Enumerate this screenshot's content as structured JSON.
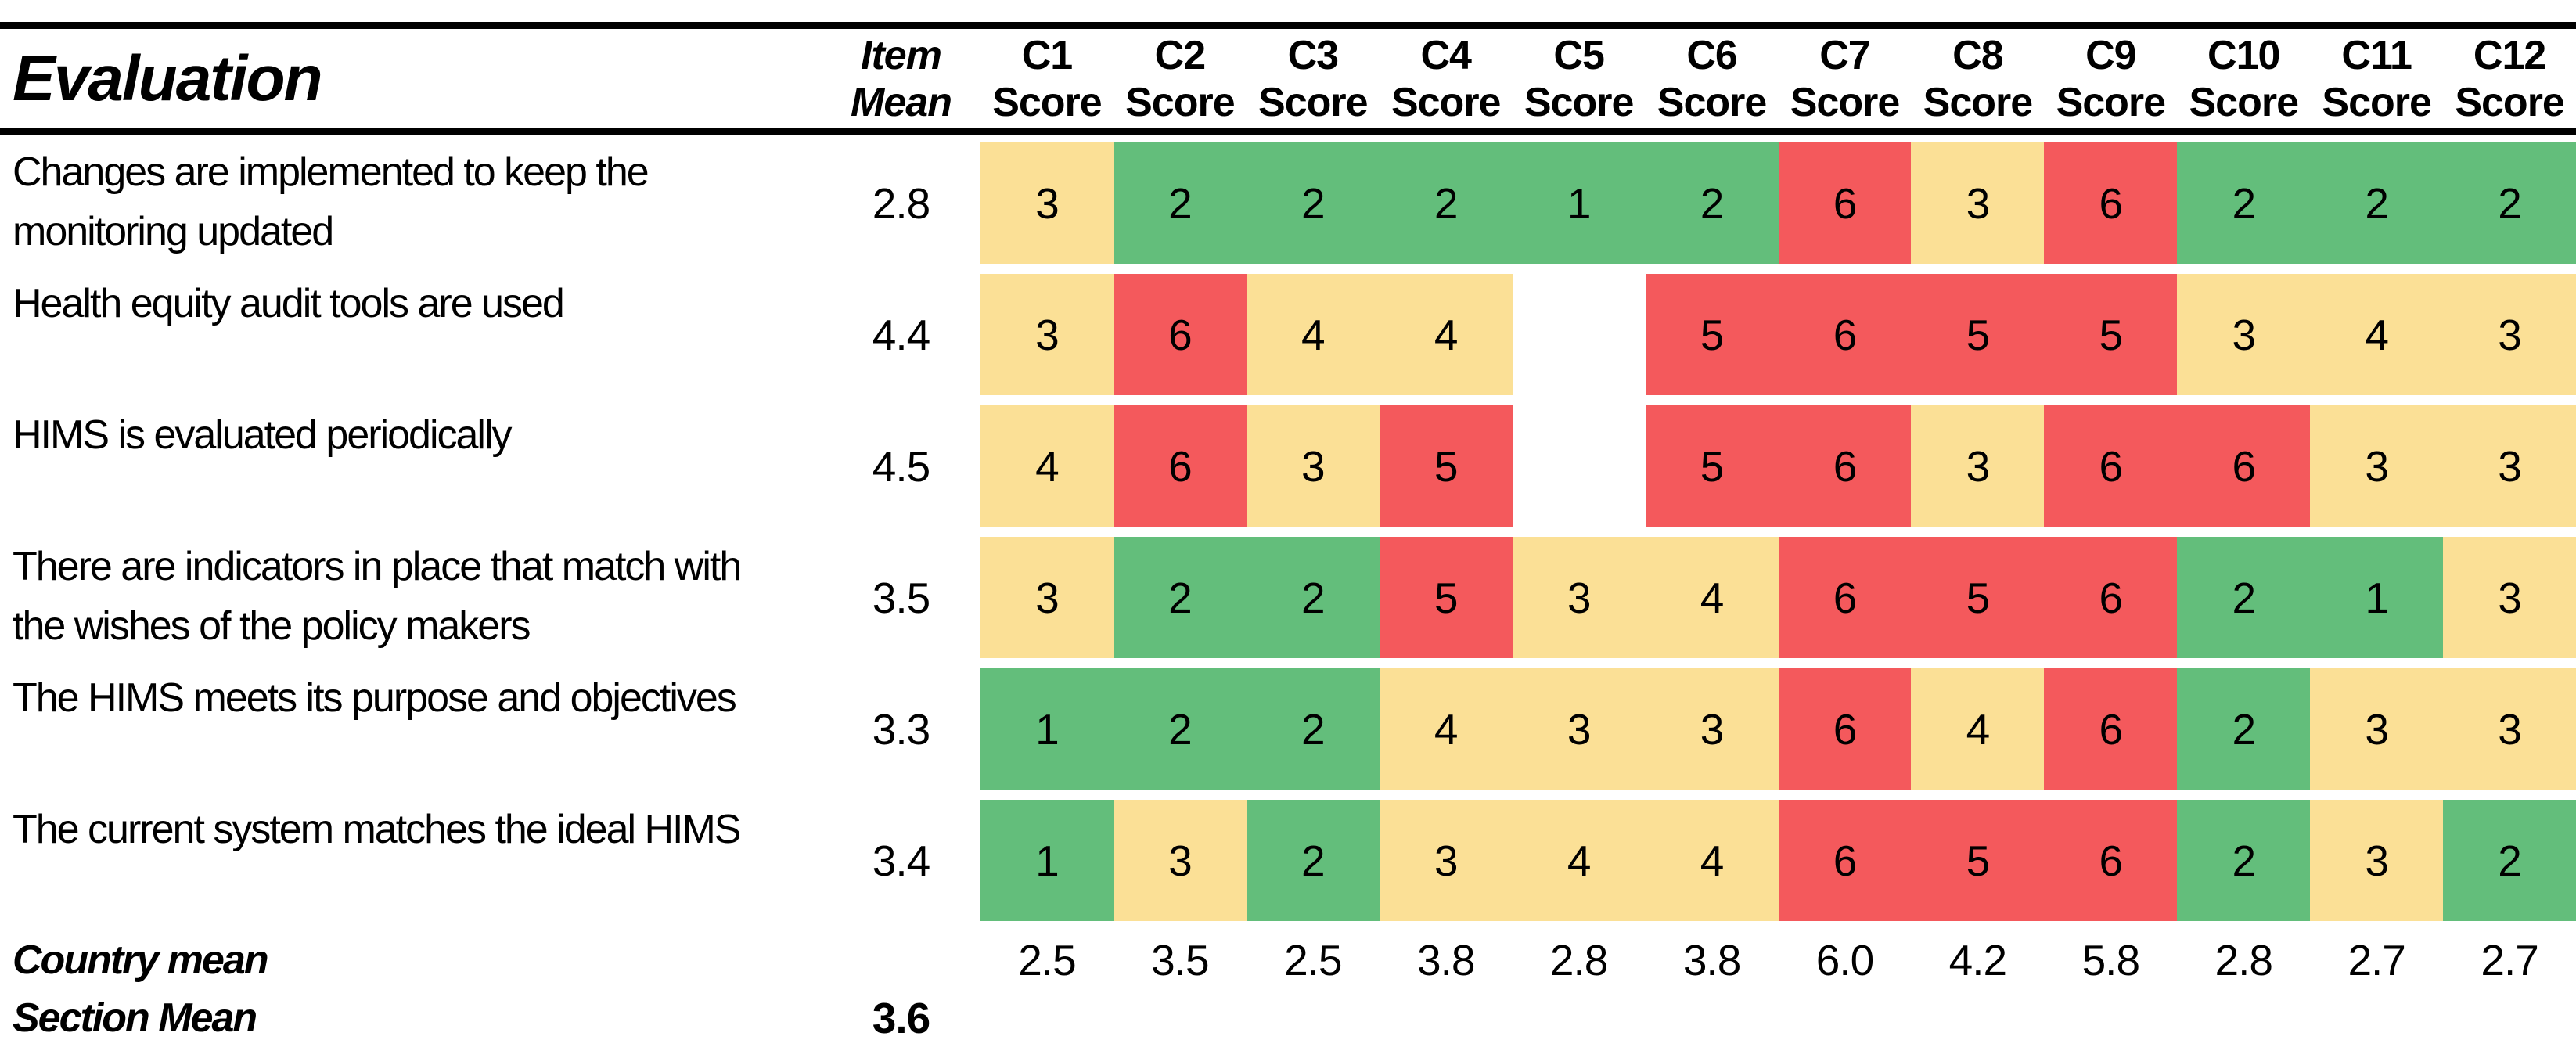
{
  "table": {
    "title": "Evaluation",
    "item_mean_header": {
      "line1": "Item",
      "line2": "Mean"
    },
    "score_sub_label": "Score",
    "columns": [
      "C1",
      "C2",
      "C3",
      "C4",
      "C5",
      "C6",
      "C7",
      "C8",
      "C9",
      "C10",
      "C11",
      "C12"
    ],
    "colors": {
      "g": "#63BE7B",
      "y": "#FBE096",
      "r": "#F4595C"
    },
    "rows": [
      {
        "label": "Changes are implemented to keep the monitoring updated",
        "mean": "2.8",
        "cells": [
          {
            "v": "3",
            "c": "y"
          },
          {
            "v": "2",
            "c": "g"
          },
          {
            "v": "2",
            "c": "g"
          },
          {
            "v": "2",
            "c": "g"
          },
          {
            "v": "1",
            "c": "g"
          },
          {
            "v": "2",
            "c": "g"
          },
          {
            "v": "6",
            "c": "r"
          },
          {
            "v": "3",
            "c": "y"
          },
          {
            "v": "6",
            "c": "r"
          },
          {
            "v": "2",
            "c": "g"
          },
          {
            "v": "2",
            "c": "g"
          },
          {
            "v": "2",
            "c": "g"
          }
        ]
      },
      {
        "label": "Health equity audit tools are used",
        "mean": "4.4",
        "cells": [
          {
            "v": "3",
            "c": "y"
          },
          {
            "v": "6",
            "c": "r"
          },
          {
            "v": "4",
            "c": "y"
          },
          {
            "v": "4",
            "c": "y"
          },
          {
            "v": "",
            "c": ""
          },
          {
            "v": "5",
            "c": "r"
          },
          {
            "v": "6",
            "c": "r"
          },
          {
            "v": "5",
            "c": "r"
          },
          {
            "v": "5",
            "c": "r"
          },
          {
            "v": "3",
            "c": "y"
          },
          {
            "v": "4",
            "c": "y"
          },
          {
            "v": "3",
            "c": "y"
          }
        ]
      },
      {
        "label": "HIMS is evaluated periodically",
        "mean": "4.5",
        "cells": [
          {
            "v": "4",
            "c": "y"
          },
          {
            "v": "6",
            "c": "r"
          },
          {
            "v": "3",
            "c": "y"
          },
          {
            "v": "5",
            "c": "r"
          },
          {
            "v": "",
            "c": ""
          },
          {
            "v": "5",
            "c": "r"
          },
          {
            "v": "6",
            "c": "r"
          },
          {
            "v": "3",
            "c": "y"
          },
          {
            "v": "6",
            "c": "r"
          },
          {
            "v": "6",
            "c": "r"
          },
          {
            "v": "3",
            "c": "y"
          },
          {
            "v": "3",
            "c": "y"
          }
        ]
      },
      {
        "label": "There are indicators in place that match with the wishes of the policy makers",
        "mean": "3.5",
        "cells": [
          {
            "v": "3",
            "c": "y"
          },
          {
            "v": "2",
            "c": "g"
          },
          {
            "v": "2",
            "c": "g"
          },
          {
            "v": "5",
            "c": "r"
          },
          {
            "v": "3",
            "c": "y"
          },
          {
            "v": "4",
            "c": "y"
          },
          {
            "v": "6",
            "c": "r"
          },
          {
            "v": "5",
            "c": "r"
          },
          {
            "v": "6",
            "c": "r"
          },
          {
            "v": "2",
            "c": "g"
          },
          {
            "v": "1",
            "c": "g"
          },
          {
            "v": "3",
            "c": "y"
          }
        ]
      },
      {
        "label": "The HIMS meets its purpose and objectives",
        "mean": "3.3",
        "cells": [
          {
            "v": "1",
            "c": "g"
          },
          {
            "v": "2",
            "c": "g"
          },
          {
            "v": "2",
            "c": "g"
          },
          {
            "v": "4",
            "c": "y"
          },
          {
            "v": "3",
            "c": "y"
          },
          {
            "v": "3",
            "c": "y"
          },
          {
            "v": "6",
            "c": "r"
          },
          {
            "v": "4",
            "c": "y"
          },
          {
            "v": "6",
            "c": "r"
          },
          {
            "v": "2",
            "c": "g"
          },
          {
            "v": "3",
            "c": "y"
          },
          {
            "v": "3",
            "c": "y"
          }
        ]
      },
      {
        "label": "The current system matches the ideal HIMS",
        "mean": "3.4",
        "cells": [
          {
            "v": "1",
            "c": "g"
          },
          {
            "v": "3",
            "c": "y"
          },
          {
            "v": "2",
            "c": "g"
          },
          {
            "v": "3",
            "c": "y"
          },
          {
            "v": "4",
            "c": "y"
          },
          {
            "v": "4",
            "c": "y"
          },
          {
            "v": "6",
            "c": "r"
          },
          {
            "v": "5",
            "c": "r"
          },
          {
            "v": "6",
            "c": "r"
          },
          {
            "v": "2",
            "c": "g"
          },
          {
            "v": "3",
            "c": "y"
          },
          {
            "v": "2",
            "c": "g"
          }
        ]
      }
    ],
    "country_mean": {
      "label": "Country mean",
      "values": [
        "2.5",
        "3.5",
        "2.5",
        "3.8",
        "2.8",
        "3.8",
        "6.0",
        "4.2",
        "5.8",
        "2.8",
        "2.7",
        "2.7"
      ]
    },
    "section_mean": {
      "label": "Section Mean",
      "value": "3.6"
    }
  },
  "chart_data": {
    "type": "heatmap",
    "title": "Evaluation",
    "columns": [
      "C1",
      "C2",
      "C3",
      "C4",
      "C5",
      "C6",
      "C7",
      "C8",
      "C9",
      "C10",
      "C11",
      "C12"
    ],
    "row_labels": [
      "Changes are implemented to keep the monitoring updated",
      "Health equity audit tools are used",
      "HIMS is evaluated periodically",
      "There are indicators in place that match with the wishes of the policy makers",
      "The HIMS meets its purpose and objectives",
      "The current system matches the ideal HIMS"
    ],
    "item_means": [
      2.8,
      4.4,
      4.5,
      3.5,
      3.3,
      3.4
    ],
    "values": [
      [
        3,
        2,
        2,
        2,
        1,
        2,
        6,
        3,
        6,
        2,
        2,
        2
      ],
      [
        3,
        6,
        4,
        4,
        null,
        5,
        6,
        5,
        5,
        3,
        4,
        3
      ],
      [
        4,
        6,
        3,
        5,
        null,
        5,
        6,
        3,
        6,
        6,
        3,
        3
      ],
      [
        3,
        2,
        2,
        5,
        3,
        4,
        6,
        5,
        6,
        2,
        1,
        3
      ],
      [
        1,
        2,
        2,
        4,
        3,
        3,
        6,
        4,
        6,
        2,
        3,
        3
      ],
      [
        1,
        3,
        2,
        3,
        4,
        4,
        6,
        5,
        6,
        2,
        3,
        2
      ]
    ],
    "country_means": [
      2.5,
      3.5,
      2.5,
      3.8,
      2.8,
      3.8,
      6.0,
      4.2,
      5.8,
      2.8,
      2.7,
      2.7
    ],
    "section_mean": 3.6,
    "color_coding": {
      "green_low": "#63BE7B",
      "yellow_mid": "#FBE096",
      "red_high": "#F4595C"
    }
  }
}
